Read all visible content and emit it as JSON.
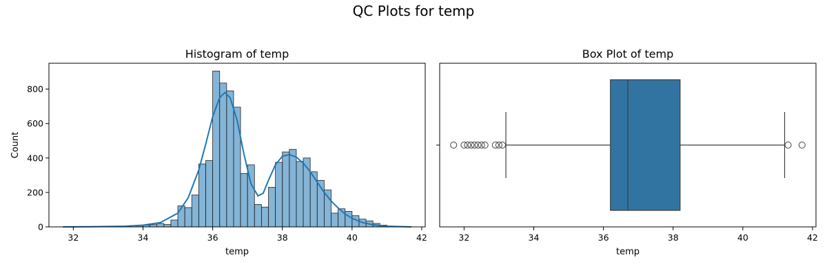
{
  "figure": {
    "suptitle": "QC Plots for temp"
  },
  "chart_data": [
    {
      "type": "bar",
      "title": "Histogram of temp",
      "xlabel": "temp",
      "ylabel": "Count",
      "xlim": [
        31.3,
        42.1
      ],
      "ylim": [
        0,
        950
      ],
      "xticks": [
        32,
        34,
        36,
        38,
        40,
        42
      ],
      "yticks": [
        0,
        200,
        400,
        600,
        800
      ],
      "grid": false,
      "bar_color": "#1f77b4",
      "bins": [
        {
          "x0": 33.8,
          "x1": 34.0,
          "count": 7
        },
        {
          "x0": 34.0,
          "x1": 34.2,
          "count": 10
        },
        {
          "x0": 34.2,
          "x1": 34.4,
          "count": 13
        },
        {
          "x0": 34.4,
          "x1": 34.6,
          "count": 20
        },
        {
          "x0": 34.6,
          "x1": 34.8,
          "count": 14
        },
        {
          "x0": 34.8,
          "x1": 35.0,
          "count": 40
        },
        {
          "x0": 35.0,
          "x1": 35.2,
          "count": 122
        },
        {
          "x0": 35.2,
          "x1": 35.4,
          "count": 112
        },
        {
          "x0": 35.4,
          "x1": 35.6,
          "count": 185
        },
        {
          "x0": 35.6,
          "x1": 35.8,
          "count": 365
        },
        {
          "x0": 35.8,
          "x1": 36.0,
          "count": 385
        },
        {
          "x0": 36.0,
          "x1": 36.2,
          "count": 905
        },
        {
          "x0": 36.2,
          "x1": 36.4,
          "count": 835
        },
        {
          "x0": 36.4,
          "x1": 36.6,
          "count": 790
        },
        {
          "x0": 36.6,
          "x1": 36.8,
          "count": 695
        },
        {
          "x0": 36.8,
          "x1": 37.0,
          "count": 310
        },
        {
          "x0": 37.0,
          "x1": 37.2,
          "count": 360
        },
        {
          "x0": 37.2,
          "x1": 37.4,
          "count": 130
        },
        {
          "x0": 37.4,
          "x1": 37.6,
          "count": 115
        },
        {
          "x0": 37.6,
          "x1": 37.8,
          "count": 230
        },
        {
          "x0": 37.8,
          "x1": 38.0,
          "count": 375
        },
        {
          "x0": 38.0,
          "x1": 38.2,
          "count": 435
        },
        {
          "x0": 38.2,
          "x1": 38.4,
          "count": 450
        },
        {
          "x0": 38.4,
          "x1": 38.6,
          "count": 380
        },
        {
          "x0": 38.6,
          "x1": 38.8,
          "count": 400
        },
        {
          "x0": 38.8,
          "x1": 39.0,
          "count": 320
        },
        {
          "x0": 39.0,
          "x1": 39.2,
          "count": 270
        },
        {
          "x0": 39.2,
          "x1": 39.4,
          "count": 215
        },
        {
          "x0": 39.4,
          "x1": 39.6,
          "count": 80
        },
        {
          "x0": 39.6,
          "x1": 39.8,
          "count": 105
        },
        {
          "x0": 39.8,
          "x1": 40.0,
          "count": 90
        },
        {
          "x0": 40.0,
          "x1": 40.2,
          "count": 65
        },
        {
          "x0": 40.2,
          "x1": 40.4,
          "count": 45
        },
        {
          "x0": 40.4,
          "x1": 40.6,
          "count": 35
        },
        {
          "x0": 40.6,
          "x1": 40.8,
          "count": 20
        },
        {
          "x0": 40.8,
          "x1": 41.0,
          "count": 10
        }
      ],
      "kde": {
        "x": [
          31.7,
          32.5,
          33.5,
          34.0,
          34.5,
          35.0,
          35.3,
          35.6,
          35.8,
          36.0,
          36.2,
          36.35,
          36.5,
          36.7,
          36.9,
          37.1,
          37.3,
          37.45,
          37.6,
          37.8,
          38.0,
          38.2,
          38.4,
          38.6,
          38.8,
          39.0,
          39.2,
          39.4,
          39.6,
          39.8,
          40.0,
          40.3,
          40.6,
          41.0,
          41.7
        ],
        "y": [
          0,
          1,
          4,
          10,
          25,
          80,
          170,
          330,
          480,
          640,
          750,
          780,
          750,
          620,
          420,
          250,
          180,
          195,
          270,
          360,
          410,
          420,
          405,
          370,
          320,
          260,
          200,
          150,
          110,
          75,
          50,
          25,
          12,
          4,
          0
        ]
      }
    },
    {
      "type": "box",
      "title": "Box Plot of temp",
      "xlabel": "temp",
      "xlim": [
        31.3,
        42.1
      ],
      "xticks": [
        32,
        34,
        36,
        38,
        40,
        42
      ],
      "grid": false,
      "box_color": "#3274a1",
      "whisker_low": 33.2,
      "q1": 36.2,
      "median": 36.7,
      "q3": 38.2,
      "whisker_high": 41.2,
      "outliers": [
        31.7,
        32.0,
        32.1,
        32.2,
        32.3,
        32.4,
        32.5,
        32.6,
        32.9,
        33.0,
        33.1,
        41.3,
        41.7
      ]
    }
  ]
}
